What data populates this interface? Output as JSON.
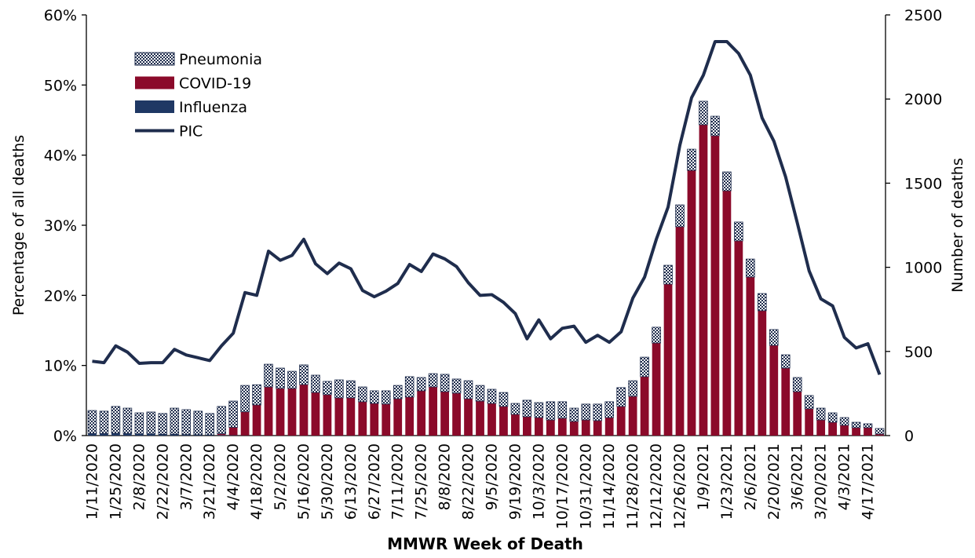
{
  "chart_data": {
    "type": "bar-line",
    "x_label": "MMWR Week of Death",
    "y_label": "Percentage of all deaths",
    "y2_label": "Number of deaths",
    "categories": [
      "1/11/2020",
      null,
      "1/25/2020",
      null,
      "2/8/2020",
      null,
      "2/22/2020",
      null,
      "3/7/2020",
      null,
      "3/21/2020",
      null,
      "4/4/2020",
      null,
      "4/18/2020",
      null,
      "5/2/2020",
      null,
      "5/16/2020",
      null,
      "5/30/2020",
      null,
      "6/13/2020",
      null,
      "6/27/2020",
      null,
      "7/11/2020",
      null,
      "7/25/2020",
      null,
      "8/8/2020",
      null,
      "8/22/2020",
      null,
      "9/5/2020",
      null,
      "9/19/2020",
      null,
      "10/3/2020",
      null,
      "10/17/2020",
      null,
      "10/31/2020",
      null,
      "11/14/2020",
      null,
      "11/28/2020",
      null,
      "12/12/2020",
      null,
      "12/26/2020",
      null,
      "1/9/2021",
      null,
      "1/23/2021",
      null,
      "2/6/2021",
      null,
      "2/20/2021",
      null,
      "3/6/2021",
      null,
      "3/20/2021",
      null,
      "4/3/2021",
      null,
      "4/17/2021",
      null
    ],
    "series": [
      {
        "name": "Pneumonia",
        "type": "bar",
        "axis": "y2",
        "color": "#1f2d4d",
        "pattern": "checker",
        "values": [
          137,
          133,
          159,
          151,
          125,
          130,
          123,
          155,
          148,
          140,
          127,
          162,
          156,
          157,
          120,
          135,
          121,
          102,
          117,
          103,
          79,
          107,
          102,
          88,
          75,
          79,
          79,
          121,
          79,
          79,
          103,
          84,
          107,
          93,
          84,
          83,
          65,
          98,
          89,
          108,
          98,
          79,
          94,
          98,
          94,
          112,
          93,
          116,
          94,
          112,
          130,
          126,
          140,
          116,
          112,
          112,
          107,
          102,
          94,
          79,
          84,
          79,
          70,
          56,
          46,
          32,
          23,
          33
        ]
      },
      {
        "name": "COVID-19",
        "type": "bar",
        "axis": "y2",
        "color": "#8b0a2a",
        "values": [
          0,
          0,
          0,
          0,
          0,
          0,
          0,
          0,
          0,
          0,
          0,
          8,
          47,
          140,
          182,
          289,
          280,
          280,
          303,
          256,
          243,
          224,
          224,
          201,
          191,
          187,
          219,
          229,
          266,
          289,
          261,
          252,
          219,
          205,
          191,
          173,
          126,
          112,
          107,
          93,
          103,
          84,
          93,
          89,
          107,
          173,
          233,
          350,
          550,
          900,
          1241,
          1576,
          1847,
          1782,
          1455,
          1157,
          942,
          742,
          536,
          401,
          261,
          159,
          93,
          79,
          61,
          47,
          47,
          9
        ]
      },
      {
        "name": "Influenza",
        "type": "bar",
        "axis": "y2",
        "color": "#1f3864",
        "values": [
          12,
          12,
          14,
          12,
          10,
          10,
          8,
          8,
          6,
          5,
          4,
          3,
          2,
          1,
          0,
          0,
          0,
          0,
          0,
          0,
          0,
          0,
          0,
          0,
          0,
          0,
          0,
          0,
          0,
          0,
          0,
          0,
          0,
          0,
          0,
          0,
          0,
          0,
          0,
          0,
          0,
          0,
          0,
          0,
          0,
          0,
          0,
          0,
          0,
          0,
          0,
          0,
          0,
          0,
          0,
          0,
          0,
          0,
          0,
          0,
          0,
          0,
          0,
          0,
          0,
          0,
          0,
          0
        ]
      },
      {
        "name": "PIC",
        "type": "line",
        "axis": "y",
        "color": "#1f2d4d",
        "values": [
          10.6,
          10.4,
          12.8,
          11.9,
          10.3,
          10.4,
          10.4,
          12.3,
          11.5,
          11.1,
          10.7,
          12.8,
          14.6,
          20.4,
          20.0,
          26.3,
          25.0,
          25.7,
          28.0,
          24.5,
          23.1,
          24.6,
          23.8,
          20.7,
          19.8,
          20.6,
          21.7,
          24.4,
          23.4,
          25.9,
          25.2,
          24.1,
          21.8,
          20.0,
          20.1,
          19.0,
          17.4,
          13.8,
          16.5,
          13.8,
          15.3,
          15.6,
          13.3,
          14.3,
          13.3,
          14.8,
          19.6,
          22.6,
          28.0,
          32.6,
          41.4,
          48.2,
          51.4,
          56.2,
          56.2,
          54.5,
          51.4,
          45.3,
          42.0,
          36.9,
          30.3,
          23.5,
          19.5,
          18.5,
          14.0,
          12.5,
          13.1,
          8.7
        ]
      }
    ],
    "ylim": [
      0,
      60
    ],
    "yticks": [
      {
        "value": 0,
        "label": "0%"
      },
      {
        "value": 10,
        "label": "10%"
      },
      {
        "value": 20,
        "label": "20%"
      },
      {
        "value": 30,
        "label": "30%"
      },
      {
        "value": 40,
        "label": "40%"
      },
      {
        "value": 50,
        "label": "50%"
      },
      {
        "value": 60,
        "label": "60%"
      }
    ],
    "y2lim": [
      0,
      2500
    ],
    "y2ticks": [
      0,
      500,
      1000,
      1500,
      2000,
      2500
    ],
    "legend": "upper-left",
    "grid": false
  }
}
